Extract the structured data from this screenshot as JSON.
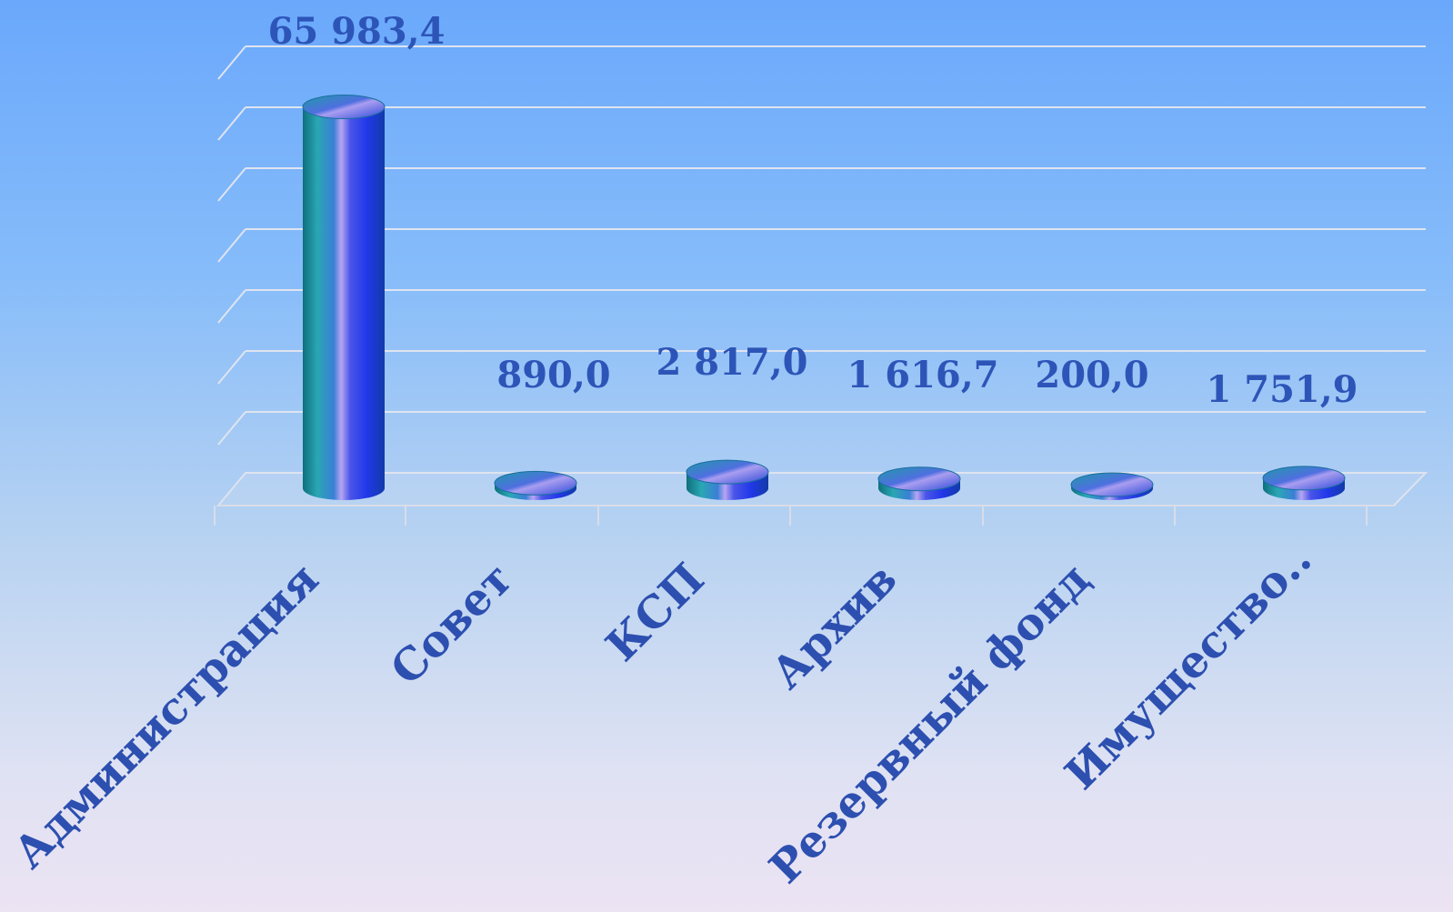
{
  "chart_data": {
    "type": "bar",
    "categories": [
      "Администрация",
      "Совет",
      "КСП",
      "Архив",
      "Резервный фонд",
      "Имущество.."
    ],
    "values": [
      65983.4,
      890.0,
      2817.0,
      1616.7,
      200.0,
      1751.9
    ],
    "value_labels": [
      "65 983,4",
      "890,0",
      "2 817,0",
      "1 616,7",
      "200,0",
      "1 751,9"
    ],
    "title": "",
    "xlabel": "",
    "ylabel": "",
    "ylim": [
      0,
      70000
    ],
    "grid": true,
    "legend": "none",
    "style": "3d-cylinder",
    "colors": {
      "bar_dark": "#0e6f7d",
      "bar_teal": "#2aa7b3",
      "bar_light": "#b6a6f2",
      "bar_blue": "#2238ea",
      "label": "#2d55b8",
      "grid": "#d8ddec"
    }
  }
}
